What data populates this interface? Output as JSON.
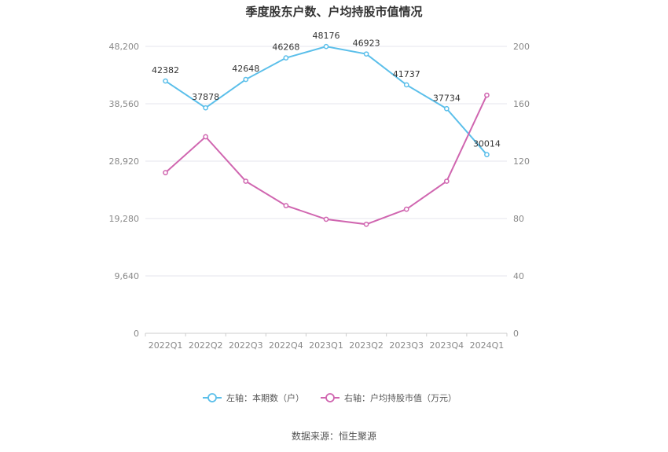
{
  "chart_data": {
    "type": "line",
    "title": "季度股东户数、户均持股市值情况",
    "categories": [
      "2022Q1",
      "2022Q2",
      "2022Q3",
      "2022Q4",
      "2023Q1",
      "2023Q2",
      "2023Q3",
      "2023Q4",
      "2024Q1"
    ],
    "series": [
      {
        "name": "左轴：本期数（户）",
        "axis": "left",
        "color": "#5bbfea",
        "values": [
          42382,
          37878,
          42648,
          46268,
          48176,
          46923,
          41737,
          37734,
          30014
        ],
        "labels": [
          "42382",
          "37878",
          "42648",
          "46268",
          "48176",
          "46923",
          "41737",
          "37734",
          "30014"
        ]
      },
      {
        "name": "右轴：户均持股市值（万元）",
        "axis": "right",
        "color": "#d066b0",
        "values": [
          112,
          137,
          106,
          89,
          79.5,
          76,
          86.5,
          106,
          166
        ]
      }
    ],
    "left_axis": {
      "min": 0,
      "max": 48200,
      "ticks": [
        "0",
        "9,640",
        "19,280",
        "28,920",
        "38,560",
        "48,200"
      ]
    },
    "right_axis": {
      "min": 0,
      "max": 200,
      "ticks": [
        "0",
        "40",
        "80",
        "120",
        "160",
        "200"
      ]
    },
    "grid": true,
    "legend_position": "bottom"
  },
  "source": "数据来源：恒生聚源"
}
